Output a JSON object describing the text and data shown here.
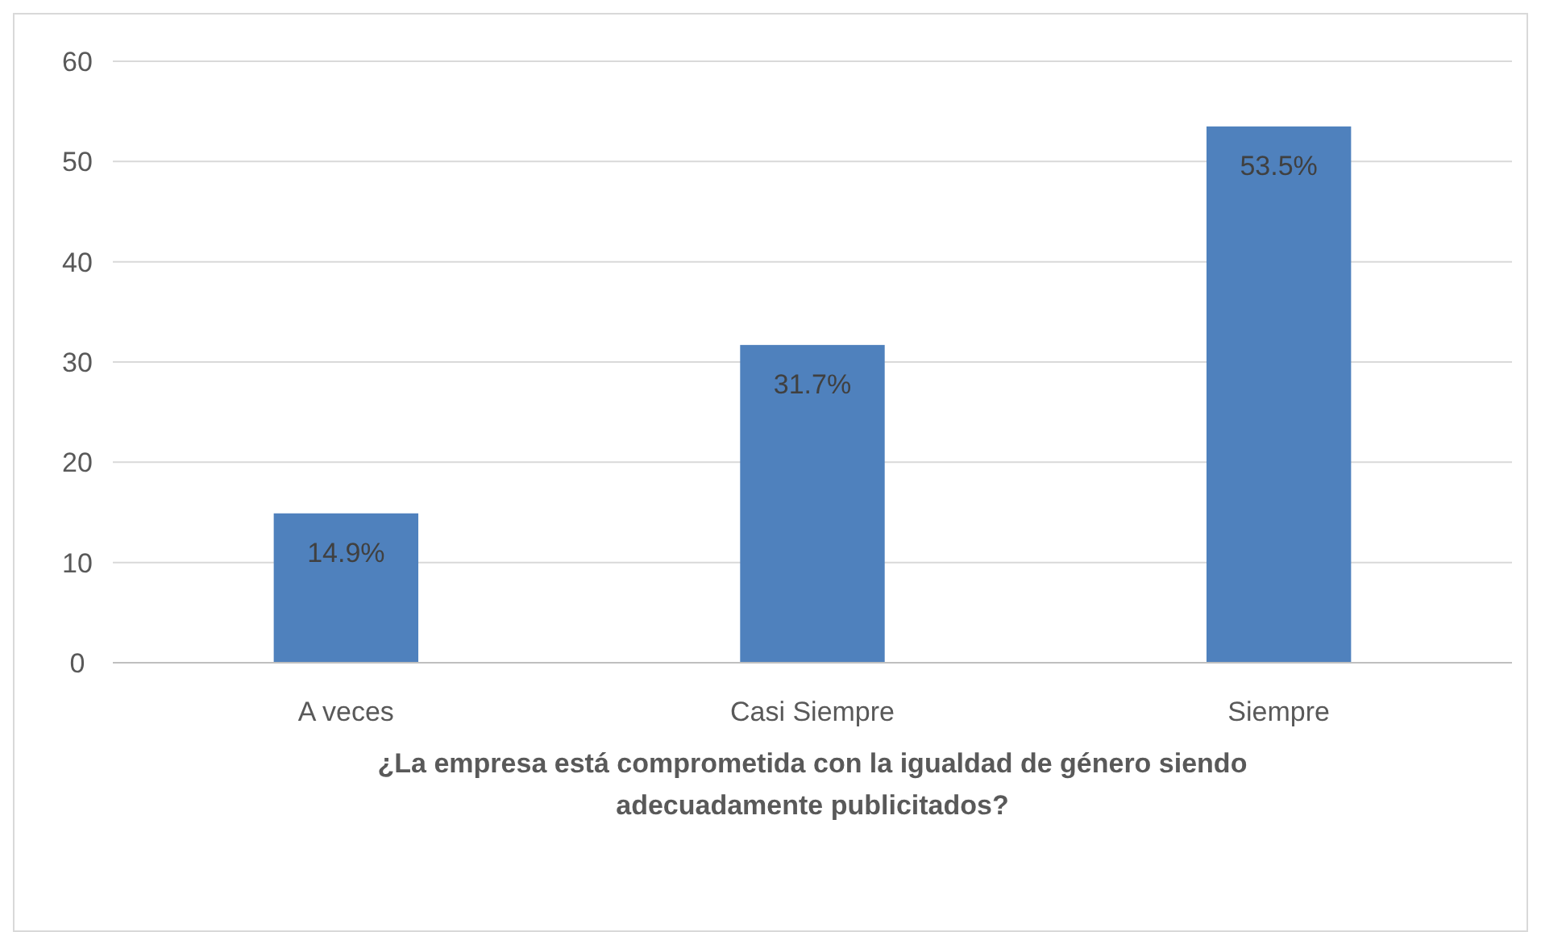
{
  "chart_data": {
    "type": "bar",
    "xlabel": "¿La empresa está comprometida con la igualdad de género siendo adecuadamente publicitados?",
    "categories": [
      "A veces",
      "Casi Siempre",
      "Siempre"
    ],
    "values": [
      14.9,
      31.7,
      53.5
    ],
    "value_labels": [
      "14.9%",
      "31.7%",
      "53.5%"
    ],
    "color": "#4f81bd",
    "ylim": [
      0,
      60
    ],
    "yticks": [
      0,
      10,
      20,
      30,
      40,
      50,
      60
    ],
    "grid": "y"
  }
}
